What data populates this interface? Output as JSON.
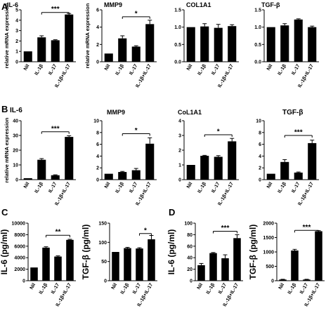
{
  "panel_labels": [
    "A",
    "B",
    "C",
    "D"
  ],
  "chart_data": [
    {
      "id": "a1",
      "panel": "A",
      "type": "bar",
      "title": "IL-6",
      "ylabel": "relative mRNA expression",
      "categories": [
        "Nil",
        "IL-1β",
        "IL-17",
        "IL-1β+IL-17"
      ],
      "values": [
        1.0,
        2.35,
        2.07,
        4.55
      ],
      "errors": [
        0,
        0.15,
        0.05,
        0.1
      ],
      "ylim": [
        0,
        5
      ],
      "yticks": [
        "0",
        "1",
        "2",
        "3",
        "4",
        "5"
      ],
      "sig": {
        "label": "***",
        "from": 1,
        "to": 3,
        "y": 4.75
      }
    },
    {
      "id": "a2",
      "panel": "A",
      "type": "bar",
      "title": "MMP9",
      "ylabel": "relative mRNA expression",
      "categories": [
        "Nil",
        "IL-1β",
        "IL-17",
        "IL-1β+IL-17"
      ],
      "values": [
        0.95,
        2.7,
        1.75,
        4.35
      ],
      "errors": [
        0,
        0.3,
        0.1,
        0.45
      ],
      "ylim": [
        0,
        6
      ],
      "yticks": [
        "0",
        "2",
        "4",
        "6"
      ],
      "sig": {
        "label": "*",
        "from": 1,
        "to": 3,
        "y": 5.2
      }
    },
    {
      "id": "a3",
      "panel": "A",
      "type": "bar",
      "title": "COL1A1",
      "ylabel": "",
      "categories": [
        "Nil",
        "IL-1β",
        "IL-17",
        "IL-1β+IL-17"
      ],
      "values": [
        1.0,
        1.02,
        0.98,
        1.03
      ],
      "errors": [
        0,
        0.08,
        0.1,
        0.04
      ],
      "ylim": [
        0,
        1.5
      ],
      "yticks": [
        "0.0",
        "0.5",
        "1.0",
        "1.5"
      ]
    },
    {
      "id": "a4",
      "panel": "A",
      "type": "bar",
      "title": "TGF-β",
      "ylabel": "",
      "categories": [
        "Nil",
        "IL-1β",
        "IL-17",
        "IL-1β+IL-17"
      ],
      "values": [
        1.0,
        1.05,
        1.22,
        1.0
      ],
      "errors": [
        0,
        0.05,
        0.02,
        0.03
      ],
      "ylim": [
        0,
        1.5
      ],
      "yticks": [
        "0.0",
        "0.5",
        "1.0",
        "1.5"
      ]
    },
    {
      "id": "b1",
      "panel": "B",
      "type": "bar",
      "title": "IL-6",
      "ylabel": "relative mRNA expression",
      "categories": [
        "Nil",
        "IL-1β",
        "IL-17",
        "IL-1β+IL-17"
      ],
      "values": [
        1.0,
        13.5,
        3.0,
        29.0
      ],
      "errors": [
        0,
        0.8,
        0.3,
        0.8
      ],
      "ylim": [
        0,
        40
      ],
      "yticks": [
        "0",
        "10",
        "20",
        "30",
        "40"
      ],
      "sig": {
        "label": "***",
        "from": 1,
        "to": 3,
        "y": 32.5
      }
    },
    {
      "id": "b2",
      "panel": "B",
      "type": "bar",
      "title": "MMP9",
      "ylabel": "",
      "categories": [
        "Nil",
        "IL-1β",
        "IL-17",
        "IL-1β+IL-17"
      ],
      "values": [
        1.0,
        1.3,
        1.6,
        6.1
      ],
      "errors": [
        0,
        0.1,
        0.3,
        1.0
      ],
      "ylim": [
        0,
        10
      ],
      "yticks": [
        "0",
        "2",
        "4",
        "6",
        "8",
        "10"
      ],
      "sig": {
        "label": "*",
        "from": 1,
        "to": 3,
        "y": 7.8
      }
    },
    {
      "id": "b3",
      "panel": "B",
      "type": "bar",
      "title": "CoL1A1",
      "ylabel": "",
      "categories": [
        "Nil",
        "IL-1β",
        "IL-17",
        "IL-1β+IL-17"
      ],
      "values": [
        1.0,
        1.62,
        1.55,
        2.6
      ],
      "errors": [
        0,
        0.03,
        0.08,
        0.2
      ],
      "ylim": [
        0,
        4
      ],
      "yticks": [
        "0",
        "1",
        "2",
        "3",
        "4"
      ],
      "sig": {
        "label": "*",
        "from": 1,
        "to": 3,
        "y": 3.05
      }
    },
    {
      "id": "b4",
      "panel": "B",
      "type": "bar",
      "title": "TGF-β",
      "ylabel": "",
      "categories": [
        "Nil",
        "IL-1β",
        "IL-17",
        "IL-1β+IL-17"
      ],
      "values": [
        1.0,
        3.0,
        1.2,
        6.2
      ],
      "errors": [
        0,
        0.4,
        0.1,
        0.5
      ],
      "ylim": [
        0,
        10
      ],
      "yticks": [
        "0",
        "2",
        "4",
        "6",
        "8",
        "10"
      ],
      "sig": {
        "label": "***",
        "from": 1,
        "to": 3,
        "y": 7.5
      }
    },
    {
      "id": "c1",
      "panel": "C",
      "type": "bar",
      "title": "",
      "ylabel": "IL-6 (pg/ml)",
      "categories": [
        "Nil",
        "IL-1β",
        "IL-17",
        "IL-1β+IL-17"
      ],
      "values": [
        2300,
        5750,
        4200,
        7100
      ],
      "errors": [
        0,
        150,
        120,
        100
      ],
      "ylim": [
        0,
        10000
      ],
      "yticks": [
        "0",
        "2000",
        "4000",
        "6000",
        "8000",
        "10000"
      ],
      "sig": {
        "label": "**",
        "from": 1,
        "to": 3,
        "y": 7900
      }
    },
    {
      "id": "c2",
      "panel": "C",
      "type": "bar",
      "title": "",
      "ylabel": "TGF-β (pg/ml)",
      "categories": [
        "Nil",
        "IL-1β",
        "IL-17",
        "IL-1β+IL-17"
      ],
      "values": [
        75,
        85,
        84,
        108
      ],
      "errors": [
        0,
        2,
        2,
        10
      ],
      "ylim": [
        0,
        150
      ],
      "yticks": [
        "0",
        "50",
        "100",
        "150"
      ],
      "sig": {
        "label": "*",
        "from": 2,
        "to": 3,
        "y": 123
      }
    },
    {
      "id": "d1",
      "panel": "D",
      "type": "bar",
      "title": "",
      "ylabel": "IL-6 (pg/ml)",
      "categories": [
        "Nil",
        "IL-1β",
        "IL-17",
        "IL-1β+IL-17"
      ],
      "values": [
        27,
        48,
        39,
        74
      ],
      "errors": [
        3,
        1,
        6,
        6
      ],
      "ylim": [
        0,
        100
      ],
      "yticks": [
        "0",
        "20",
        "40",
        "60",
        "80",
        "100"
      ],
      "sig": {
        "label": "***",
        "from": 1,
        "to": 3,
        "y": 86
      }
    },
    {
      "id": "d2",
      "panel": "D",
      "type": "bar",
      "title": "",
      "ylabel": "TGF-β (pg/ml)",
      "categories": [
        "Nil",
        "IL-1β",
        "IL-17",
        "IL-1β+IL-17"
      ],
      "values": [
        40,
        1050,
        40,
        1720
      ],
      "errors": [
        10,
        40,
        10,
        20
      ],
      "ylim": [
        0,
        2000
      ],
      "yticks": [
        "0",
        "500",
        "1000",
        "1500",
        "2000"
      ],
      "sig": {
        "label": "***",
        "from": 1,
        "to": 3,
        "y": 1750
      }
    }
  ]
}
